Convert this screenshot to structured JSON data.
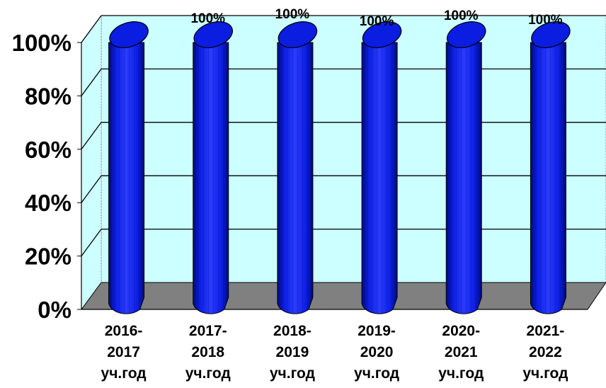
{
  "chart_data": {
    "type": "bar",
    "categories": [
      [
        "2016-",
        "2017",
        "уч.год"
      ],
      [
        "2017-",
        "2018",
        "уч.год"
      ],
      [
        "2018-",
        "2019",
        "уч.год"
      ],
      [
        "2019-",
        "2020",
        "уч.год"
      ],
      [
        "2020-",
        "2021",
        "уч.год"
      ],
      [
        "2021-",
        "2022",
        "уч.год"
      ]
    ],
    "values": [
      100,
      100,
      100,
      100,
      100,
      100
    ],
    "data_labels": [
      "",
      "100%",
      "100%",
      "100%",
      "100%",
      "100%"
    ],
    "y_ticks": [
      "0%",
      "20%",
      "40%",
      "60%",
      "80%",
      "100%"
    ],
    "ylim": [
      0,
      100
    ],
    "grid": true,
    "style": "3d-cylinder",
    "colors": {
      "bar": "#0a1de0",
      "bar_dark": "#000a78",
      "bar_light": "#5a6bff",
      "wall": "#ccffff",
      "floor": "#808080",
      "grid": "#000000"
    }
  }
}
